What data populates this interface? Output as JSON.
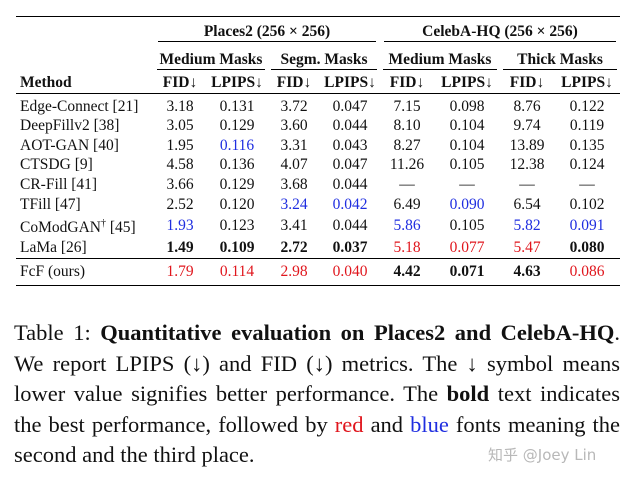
{
  "table": {
    "groups": [
      {
        "label": "Places2 (256 × 256)"
      },
      {
        "label": "CelebA-HQ (256 × 256)"
      }
    ],
    "subgroups": [
      "Medium Masks",
      "Segm. Masks",
      "Medium Masks",
      "Thick Masks"
    ],
    "method_header": "Method",
    "metric_headers": [
      "FID↓",
      "LPIPS↓",
      "FID↓",
      "LPIPS↓",
      "FID↓",
      "LPIPS↓",
      "FID↓",
      "LPIPS↓"
    ],
    "rows": [
      {
        "method": "Edge-Connect [21]",
        "values": [
          "3.18",
          "0.131",
          "3.72",
          "0.047",
          "7.15",
          "0.098",
          "8.76",
          "0.122"
        ],
        "styles": [
          "",
          "",
          "",
          "",
          "",
          "",
          "",
          ""
        ]
      },
      {
        "method": "DeepFillv2 [38]",
        "values": [
          "3.05",
          "0.129",
          "3.60",
          "0.044",
          "8.10",
          "0.104",
          "9.74",
          "0.119"
        ],
        "styles": [
          "",
          "",
          "",
          "",
          "",
          "",
          "",
          ""
        ]
      },
      {
        "method": "AOT-GAN [40]",
        "values": [
          "1.95",
          "0.116",
          "3.31",
          "0.043",
          "8.27",
          "0.104",
          "13.89",
          "0.135"
        ],
        "styles": [
          "",
          "blue",
          "",
          "",
          "",
          "",
          "",
          ""
        ]
      },
      {
        "method": "CTSDG [9]",
        "values": [
          "4.58",
          "0.136",
          "4.07",
          "0.047",
          "11.26",
          "0.105",
          "12.38",
          "0.124"
        ],
        "styles": [
          "",
          "",
          "",
          "",
          "",
          "",
          "",
          ""
        ]
      },
      {
        "method": "CR-Fill [41]",
        "values": [
          "3.66",
          "0.129",
          "3.68",
          "0.044",
          "—",
          "—",
          "—",
          "—"
        ],
        "styles": [
          "",
          "",
          "",
          "",
          "",
          "",
          "",
          ""
        ]
      },
      {
        "method": "TFill [47]",
        "values": [
          "2.52",
          "0.120",
          "3.24",
          "0.042",
          "6.49",
          "0.090",
          "6.54",
          "0.102"
        ],
        "styles": [
          "",
          "",
          "blue",
          "blue",
          "",
          "blue",
          "",
          ""
        ]
      },
      {
        "method": "CoModGAN",
        "method_sup": "†",
        "method_ref": " [45]",
        "values": [
          "1.93",
          "0.123",
          "3.41",
          "0.044",
          "5.86",
          "0.105",
          "5.82",
          "0.091"
        ],
        "styles": [
          "blue",
          "",
          "",
          "",
          "blue",
          "",
          "blue",
          "blue"
        ]
      },
      {
        "method": "LaMa [26]",
        "values": [
          "1.49",
          "0.109",
          "2.72",
          "0.037",
          "5.18",
          "0.077",
          "5.47",
          "0.080"
        ],
        "styles": [
          "bold",
          "bold",
          "bold",
          "bold",
          "red",
          "red",
          "red",
          "bold"
        ]
      }
    ],
    "final_row": {
      "method": "FcF (ours)",
      "values": [
        "1.79",
        "0.114",
        "2.98",
        "0.040",
        "4.42",
        "0.071",
        "4.63",
        "0.086"
      ],
      "styles": [
        "red",
        "red",
        "red",
        "red",
        "bold",
        "bold",
        "bold",
        "red"
      ]
    }
  },
  "caption": {
    "prefix": "Table 1: ",
    "title": "Quantitative evaluation on Places2 and CelebA-HQ",
    "s1": ". We report LPIPS (↓) and FID (↓) metrics. The ↓ symbol means lower value signifies better performance. The ",
    "bold_word": "bold",
    "s2": " text indicates the best performance, followed by ",
    "red_word": "red",
    "s3": " and ",
    "blue_word": "blue",
    "s4": " fonts meaning the second and the third place."
  },
  "watermark": "知乎 @Joey Lin",
  "colors": {
    "red": "#e0161d",
    "blue": "#1f2ee0"
  }
}
